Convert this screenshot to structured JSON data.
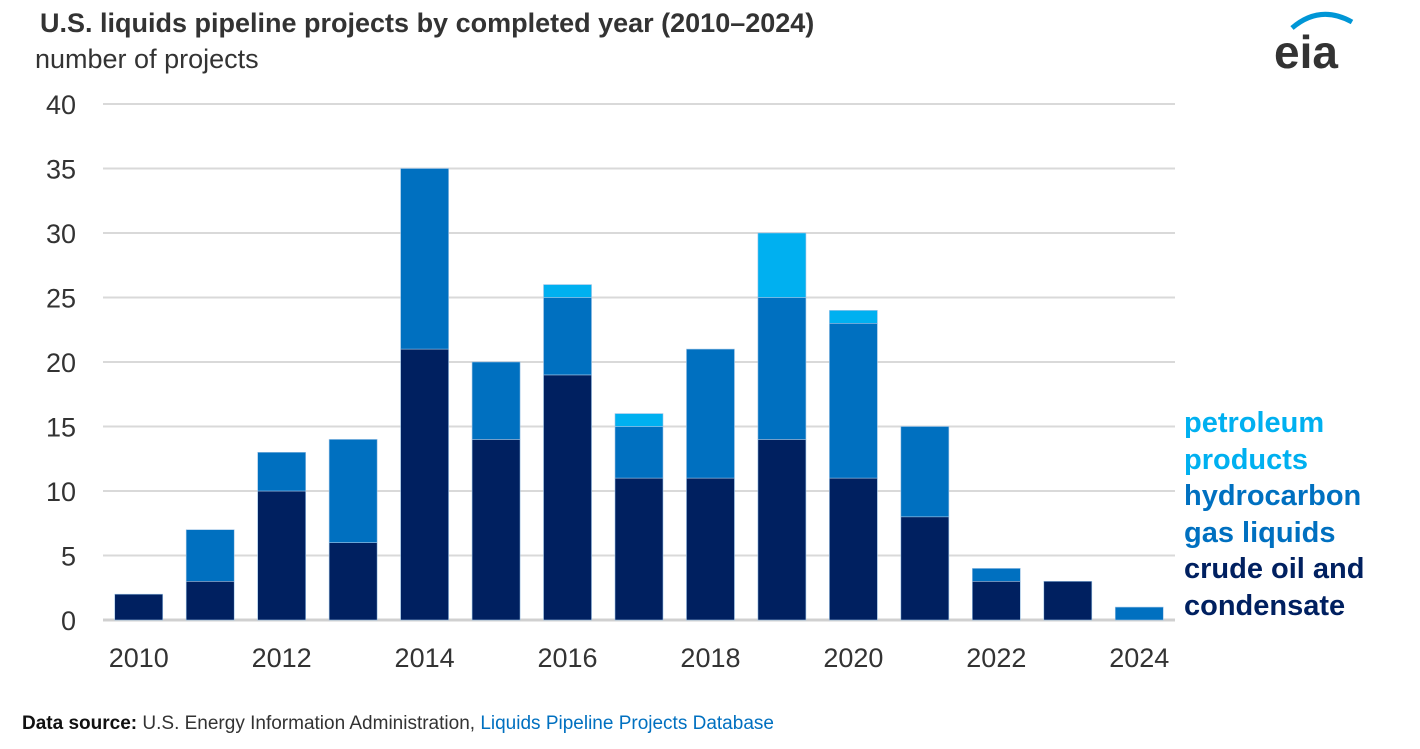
{
  "title": "U.S. liquids pipeline projects by completed year (2010–2024)",
  "chart_data": {
    "type": "bar",
    "stacked": true,
    "title": "U.S. liquids pipeline projects by completed year (2010–2024)",
    "ylabel": "number of projects",
    "xlabel": "",
    "ylim": [
      0,
      40
    ],
    "yticks": [
      0,
      5,
      10,
      15,
      20,
      25,
      30,
      35,
      40
    ],
    "xtick_labels": [
      "2010",
      "2012",
      "2014",
      "2016",
      "2018",
      "2020",
      "2022",
      "2024"
    ],
    "grid": true,
    "legend_placement": "right",
    "categories": [
      "2010",
      "2011",
      "2012",
      "2013",
      "2014",
      "2015",
      "2016",
      "2017",
      "2018",
      "2019",
      "2020",
      "2021",
      "2022",
      "2023",
      "2024"
    ],
    "series": [
      {
        "name": "crude oil and condensate",
        "color": "#002060",
        "values": [
          2,
          3,
          10,
          6,
          21,
          14,
          19,
          11,
          11,
          14,
          11,
          8,
          3,
          3,
          0
        ]
      },
      {
        "name": "hydrocarbon gas liquids",
        "color": "#0070c0",
        "values": [
          0,
          4,
          3,
          8,
          14,
          6,
          6,
          4,
          10,
          11,
          12,
          7,
          1,
          0,
          1
        ]
      },
      {
        "name": "petroleum products",
        "color": "#00b0f0",
        "values": [
          0,
          0,
          0,
          0,
          0,
          0,
          1,
          1,
          0,
          5,
          1,
          0,
          0,
          0,
          0
        ]
      }
    ]
  },
  "legend": [
    {
      "line1": "petroleum",
      "line2": "products",
      "color": "#00b0f0"
    },
    {
      "line1": "hydrocarbon",
      "line2": "gas liquids",
      "color": "#0070c0"
    },
    {
      "line1": "crude oil and",
      "line2": "condensate",
      "color": "#002060"
    }
  ],
  "source": {
    "label": "Data source:",
    "text": "U.S. Energy Information Administration,",
    "link": "Liquids Pipeline Projects Database"
  },
  "logo": {
    "text": "eia",
    "color": "#0096d6"
  }
}
